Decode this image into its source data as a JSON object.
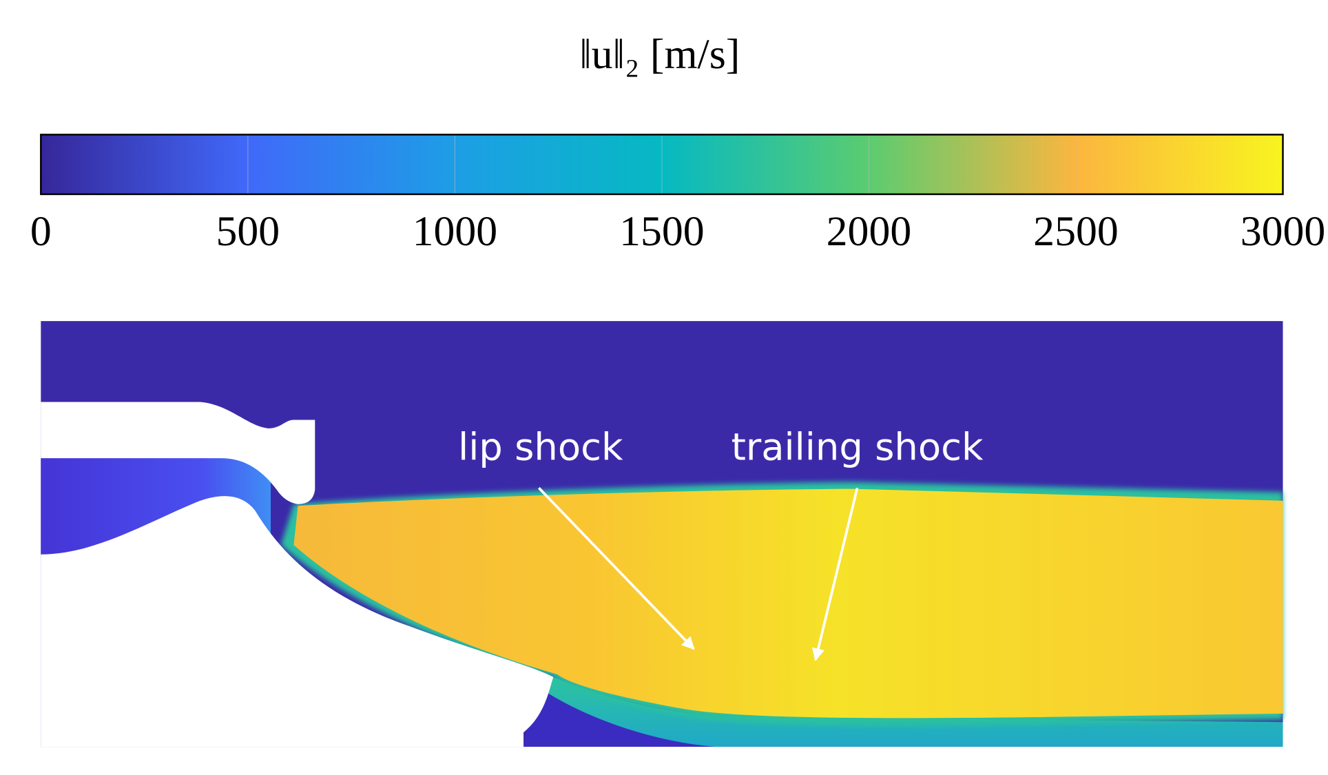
{
  "chart_data": {
    "type": "colorbar",
    "title": "‖u‖₂ [m/s]",
    "xlim": [
      0,
      3000
    ],
    "xticks": [
      0,
      500,
      1000,
      1500,
      2000,
      2500,
      3000
    ],
    "colormap": [
      "#36279a",
      "#4069f9",
      "#1d9ee6",
      "#06b9c2",
      "#5bcc70",
      "#fbb63f",
      "#f8f420"
    ],
    "annotations": [
      {
        "text": "lip shock"
      },
      {
        "text": "trailing shock"
      }
    ]
  }
}
